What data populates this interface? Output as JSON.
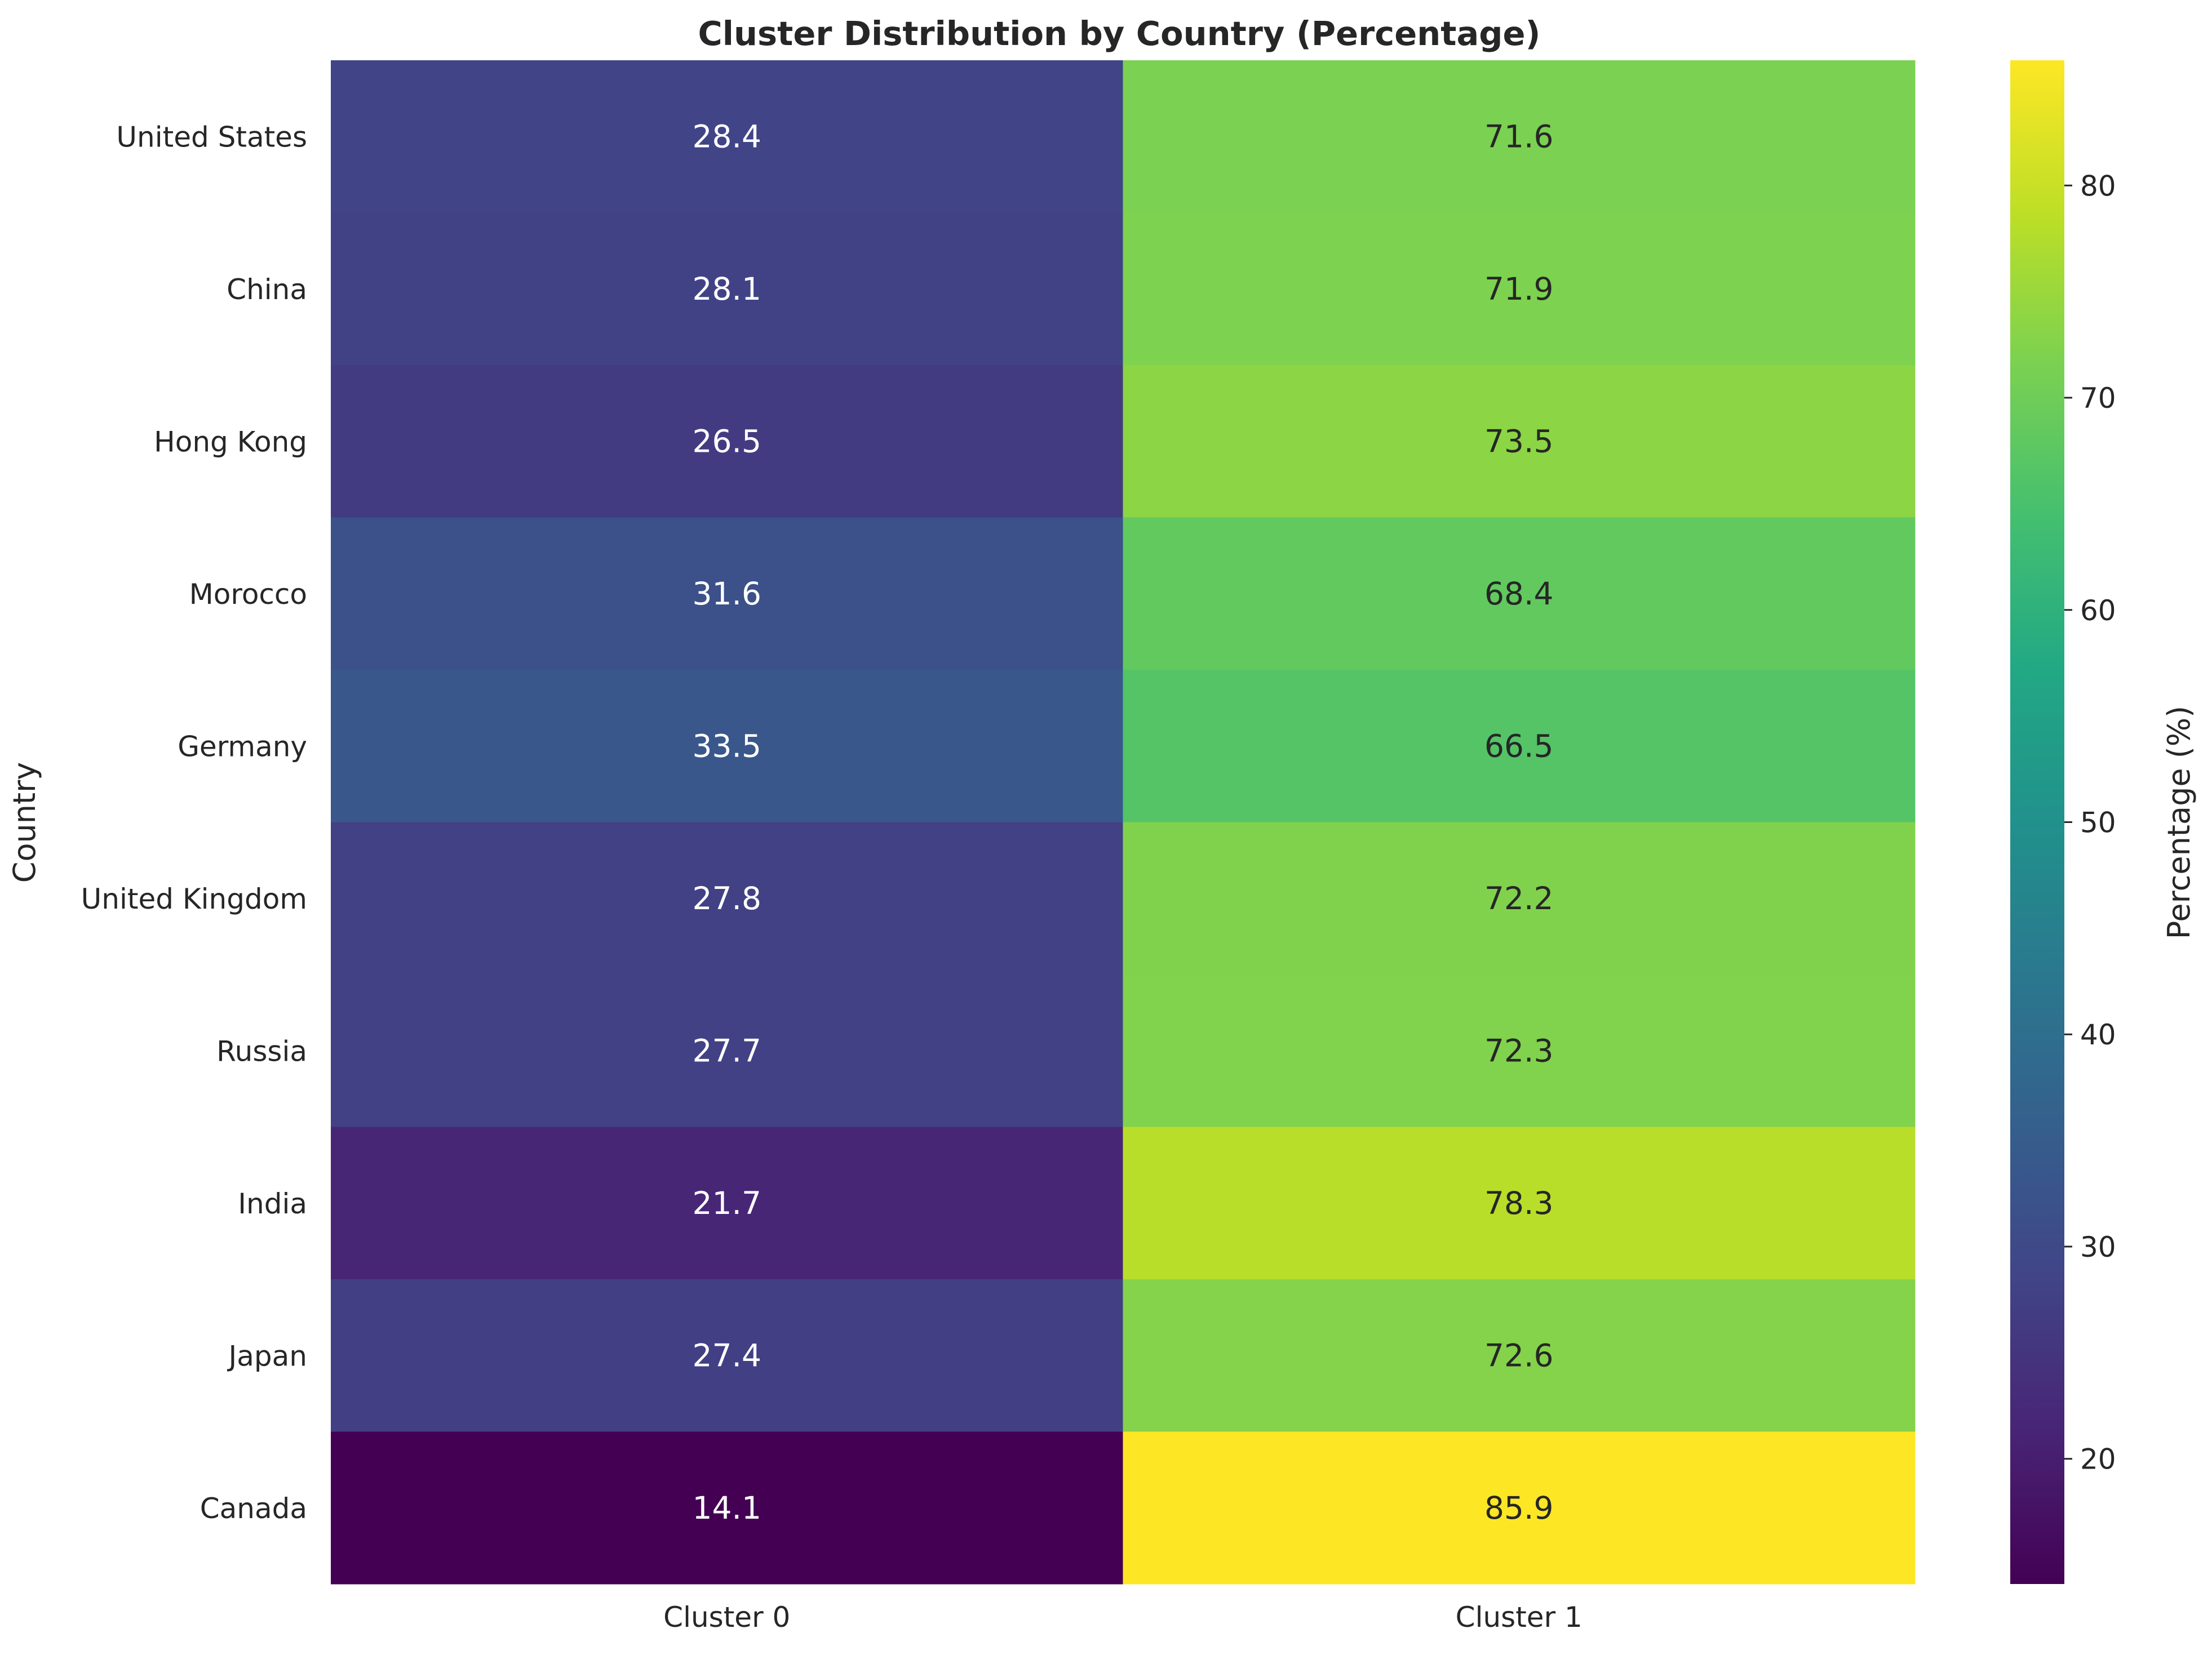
{
  "chart_data": {
    "type": "heatmap",
    "title": "Cluster Distribution by Country (Percentage)",
    "xlabel": "",
    "ylabel": "Country",
    "categories_x": [
      "Cluster 0",
      "Cluster 1"
    ],
    "categories_y": [
      "United States",
      "China",
      "Hong Kong",
      "Morocco",
      "Germany",
      "United Kingdom",
      "Russia",
      "India",
      "Japan",
      "Canada"
    ],
    "values": [
      [
        28.4,
        71.6
      ],
      [
        28.1,
        71.9
      ],
      [
        26.5,
        73.5
      ],
      [
        31.6,
        68.4
      ],
      [
        33.5,
        66.5
      ],
      [
        27.8,
        72.2
      ],
      [
        27.7,
        72.3
      ],
      [
        21.7,
        78.3
      ],
      [
        27.4,
        72.6
      ],
      [
        14.1,
        85.9
      ]
    ],
    "value_labels": [
      [
        "28.4",
        "71.6"
      ],
      [
        "28.1",
        "71.9"
      ],
      [
        "26.5",
        "73.5"
      ],
      [
        "31.6",
        "68.4"
      ],
      [
        "33.5",
        "66.5"
      ],
      [
        "27.8",
        "72.2"
      ],
      [
        "27.7",
        "72.3"
      ],
      [
        "21.7",
        "78.3"
      ],
      [
        "27.4",
        "72.6"
      ],
      [
        "14.1",
        "85.9"
      ]
    ],
    "colormap": "viridis",
    "colorbar": {
      "label": "Percentage (%)",
      "range": [
        14.1,
        85.9
      ],
      "ticks": [
        20,
        30,
        40,
        50,
        60,
        70,
        80
      ],
      "tick_labels": [
        "20",
        "30",
        "40",
        "50",
        "60",
        "70",
        "80"
      ]
    },
    "grid": false,
    "legend": "colorbar-right"
  }
}
